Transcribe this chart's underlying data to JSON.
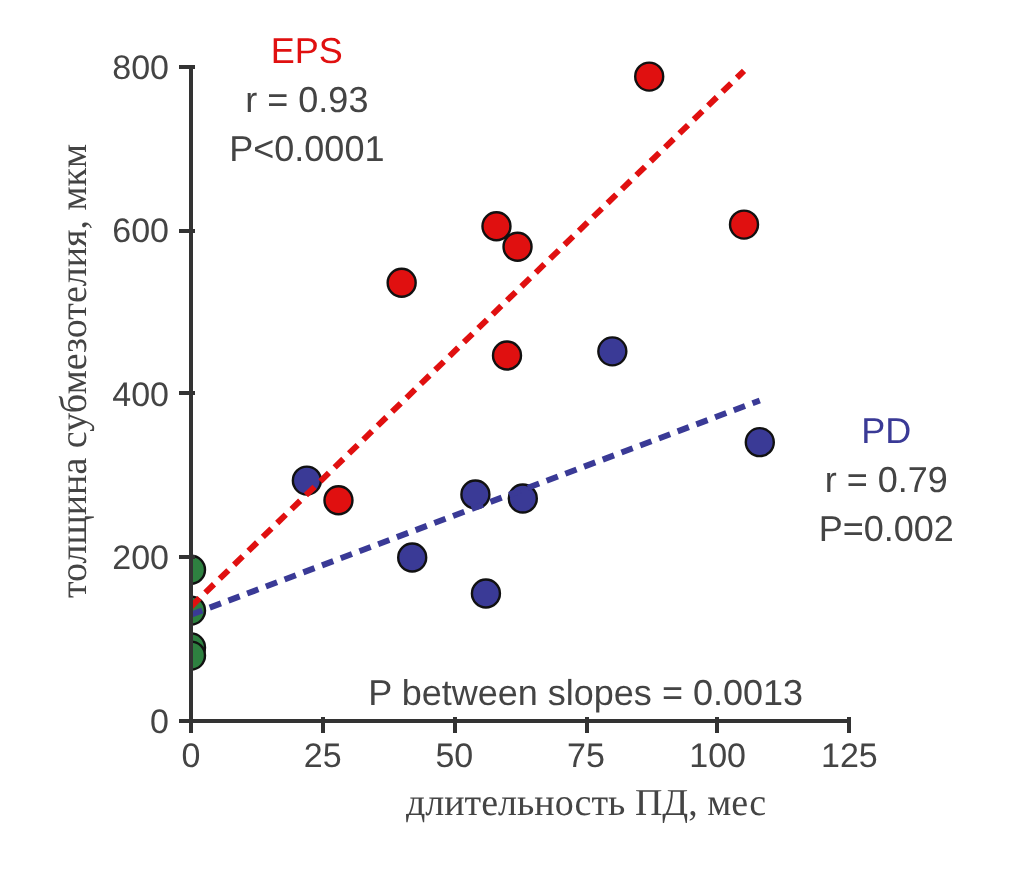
{
  "chart_data": {
    "type": "scatter",
    "xlabel": "длительность ПД, мес",
    "ylabel": "толщина субмезотелия, мкм",
    "xlim": [
      0,
      125
    ],
    "xticks": [
      0,
      25,
      50,
      75,
      100,
      125
    ],
    "ylim": [
      0,
      800
    ],
    "yticks": [
      0,
      200,
      400,
      600,
      800
    ],
    "grid": false,
    "legend": false,
    "marker": "circle",
    "series": [
      {
        "name": "EPS",
        "color": "#e01010",
        "x": [
          28,
          40,
          58,
          62,
          60,
          87,
          105
        ],
        "values": [
          270,
          536,
          605,
          580,
          447,
          788,
          607
        ]
      },
      {
        "name": "PD",
        "color": "#3a3a96",
        "x": [
          22,
          42,
          54,
          63,
          56,
          80,
          108
        ],
        "values": [
          294,
          200,
          277,
          272,
          156,
          452,
          341
        ]
      },
      {
        "color": "#2e8040",
        "x": [
          0,
          0,
          0,
          0
        ],
        "values": [
          185,
          135,
          90,
          80
        ]
      },
      {
        "type": "line",
        "color": "#e01010",
        "line_style": "dashed",
        "marker": "none",
        "x": [
          0,
          105
        ],
        "values": [
          140,
          795
        ]
      },
      {
        "type": "line",
        "color": "#3a3a96",
        "line_style": "dashed",
        "marker": "none",
        "x": [
          0,
          108
        ],
        "values": [
          130,
          392
        ]
      }
    ],
    "annotations": [
      "r = 0.93",
      "P<0.0001",
      "r = 0.79",
      "P=0.002",
      "P between slopes = 0.0013"
    ]
  }
}
